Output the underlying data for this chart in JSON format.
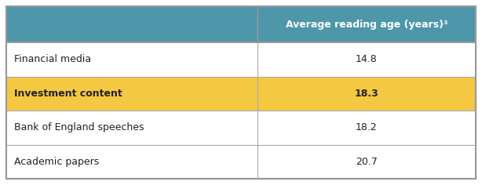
{
  "header_col2": "Average reading age (years)³",
  "rows": [
    {
      "label": "Financial media",
      "value": "14.8",
      "bold": false,
      "highlight": false
    },
    {
      "label": "Investment content",
      "value": "18.3",
      "bold": true,
      "highlight": true
    },
    {
      "label": "Bank of England speeches",
      "value": "18.2",
      "bold": false,
      "highlight": false
    },
    {
      "label": "Academic papers",
      "value": "20.7",
      "bold": false,
      "highlight": false
    }
  ],
  "header_bg": "#4e96aa",
  "header_text_color": "#ffffff",
  "highlight_color": "#f5c842",
  "row_bg_normal": "#ffffff",
  "border_color": "#aaaaaa",
  "outer_border_color": "#999999",
  "col_split": 0.535,
  "fig_width": 6.14,
  "fig_height": 2.36,
  "label_fontsize": 9.0,
  "header_fontsize": 9.0,
  "value_fontsize": 9.0
}
